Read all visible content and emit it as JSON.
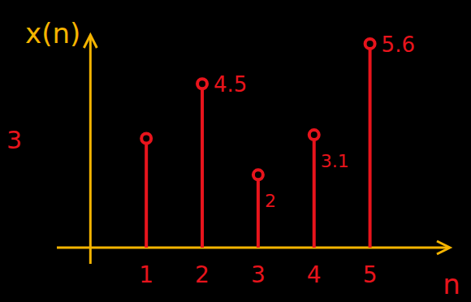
{
  "chart_data": {
    "type": "stem",
    "y_label": "x(n)",
    "x_label": "n",
    "x": [
      1,
      2,
      3,
      4,
      5
    ],
    "values": [
      3,
      4.5,
      2,
      3.1,
      5.6
    ],
    "xlim": [
      -0.6,
      6.4
    ],
    "xticks": [
      1,
      2,
      3,
      4,
      5
    ],
    "ylim": [
      0,
      5.8
    ],
    "yticks": [],
    "tick_labels": "x",
    "data_labels": true,
    "grid": false,
    "color": "#e8141c",
    "marker": "circle_open"
  }
}
